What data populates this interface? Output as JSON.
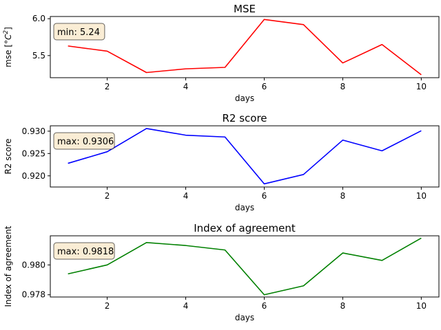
{
  "chart_data": [
    {
      "type": "line",
      "title": "MSE",
      "xlabel": "days",
      "ylabel_prefix": "mse [",
      "ylabel_unit_main": "°C",
      "ylabel_unit_sup": "2",
      "ylabel_suffix": "]",
      "color": "#ff0000",
      "x": [
        1,
        2,
        3,
        4,
        5,
        6,
        7,
        8,
        9,
        10
      ],
      "values": [
        5.63,
        5.56,
        5.27,
        5.32,
        5.34,
        5.99,
        5.92,
        5.4,
        5.65,
        5.24
      ],
      "xlim": [
        0.55,
        10.45
      ],
      "ylim": [
        5.2,
        6.03
      ],
      "xticks": [
        2,
        4,
        6,
        8,
        10
      ],
      "yticks": [
        5.5,
        6.0
      ],
      "ytick_labels": [
        "5.5",
        "6.0"
      ],
      "annotation": "min: 5.24",
      "grid": false,
      "legend": "none"
    },
    {
      "type": "line",
      "title": "R2 score",
      "xlabel": "days",
      "ylabel": "R2 score",
      "color": "#0000ff",
      "x": [
        1,
        2,
        3,
        4,
        5,
        6,
        7,
        8,
        9,
        10
      ],
      "values": [
        0.9228,
        0.9254,
        0.9306,
        0.9291,
        0.9287,
        0.9182,
        0.9203,
        0.928,
        0.9256,
        0.9301
      ],
      "xlim": [
        0.55,
        10.45
      ],
      "ylim": [
        0.9175,
        0.9312
      ],
      "xticks": [
        2,
        4,
        6,
        8,
        10
      ],
      "yticks": [
        0.92,
        0.925,
        0.93
      ],
      "ytick_labels": [
        "0.920",
        "0.925",
        "0.930"
      ],
      "annotation": "max: 0.9306",
      "grid": false,
      "legend": "none"
    },
    {
      "type": "line",
      "title": "Index of agreement",
      "xlabel": "days",
      "ylabel": "Index of agreement",
      "color": "#008000",
      "x": [
        1,
        2,
        3,
        4,
        5,
        6,
        7,
        8,
        9,
        10
      ],
      "values": [
        0.9794,
        0.98,
        0.9815,
        0.9813,
        0.981,
        0.978,
        0.9786,
        0.9808,
        0.9803,
        0.9818
      ],
      "xlim": [
        0.55,
        10.45
      ],
      "ylim": [
        0.97785,
        0.98195
      ],
      "xticks": [
        2,
        4,
        6,
        8,
        10
      ],
      "yticks": [
        0.978,
        0.98
      ],
      "ytick_labels": [
        "0.978",
        "0.980"
      ],
      "annotation": "max: 0.9818",
      "grid": false,
      "legend": "none"
    }
  ],
  "colors": {
    "annotation_fill": "#f5deb3",
    "annotation_edge": "#000000",
    "axes_edge": "#000000"
  }
}
